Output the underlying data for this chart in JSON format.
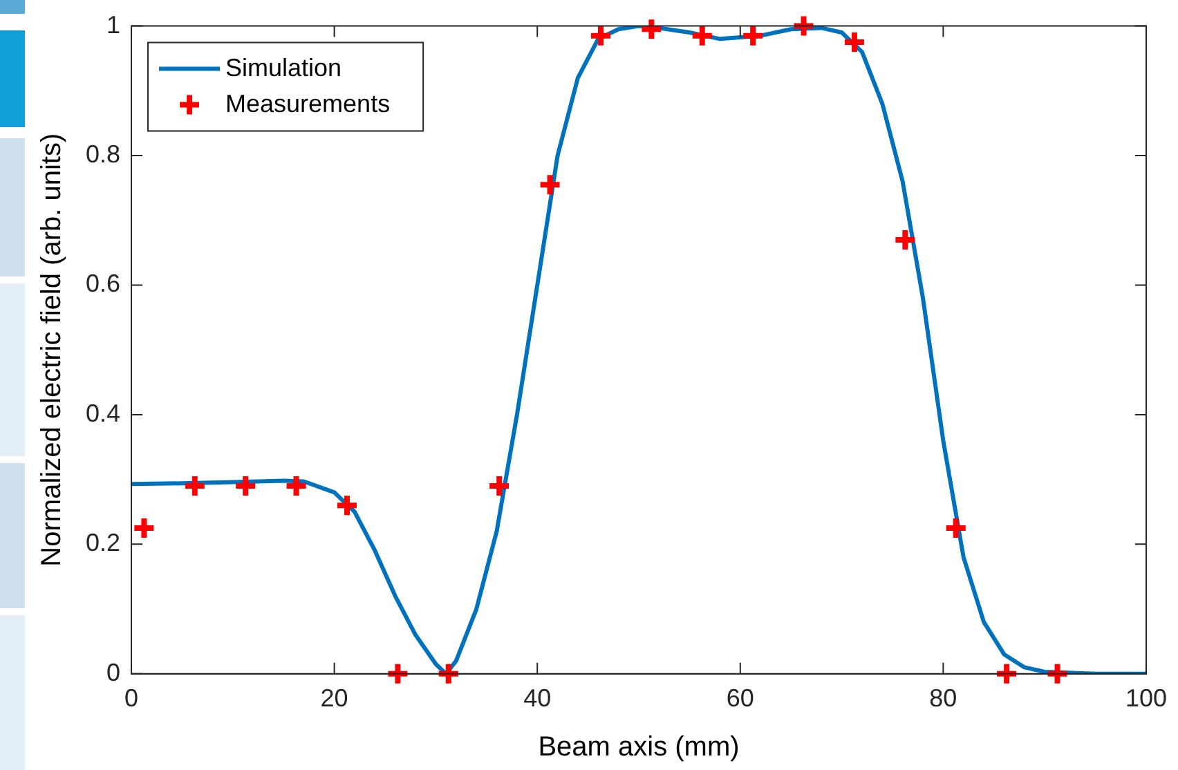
{
  "chart_data": {
    "type": "line",
    "xlabel": "Beam axis (mm)",
    "ylabel": "Normalized electric field (arb. units)",
    "xlim": [
      0,
      100
    ],
    "xticks": [
      0,
      20,
      40,
      60,
      80,
      100
    ],
    "ylim": [
      0,
      1
    ],
    "yticks": [
      0,
      0.2,
      0.4,
      0.6,
      0.8,
      1
    ],
    "grid": false,
    "legend": "top left",
    "series": [
      {
        "name": "Simulation",
        "type": "line",
        "color": "#0072bd",
        "marker": "none",
        "line_style": "solid",
        "x": [
          0,
          5,
          10,
          15,
          17,
          20,
          22,
          24,
          26,
          28,
          30,
          31,
          32,
          34,
          36,
          38,
          40,
          42,
          44,
          46,
          48,
          50,
          52,
          55,
          58,
          62,
          65,
          68,
          70,
          72,
          74,
          76,
          78,
          80,
          82,
          84,
          86,
          88,
          90,
          95,
          100
        ],
        "values": [
          0.293,
          0.294,
          0.296,
          0.298,
          0.297,
          0.28,
          0.25,
          0.19,
          0.12,
          0.06,
          0.015,
          0,
          0.02,
          0.1,
          0.22,
          0.4,
          0.6,
          0.8,
          0.92,
          0.98,
          0.995,
          1,
          0.997,
          0.99,
          0.98,
          0.985,
          0.995,
          0.997,
          0.99,
          0.96,
          0.88,
          0.76,
          0.58,
          0.36,
          0.18,
          0.08,
          0.03,
          0.01,
          0.003,
          0,
          0
        ]
      },
      {
        "name": "Measurements",
        "type": "scatter",
        "color": "#ff0000",
        "marker": "cross",
        "x": [
          1.25,
          6.25,
          11.25,
          16.25,
          21.25,
          26.25,
          31.25,
          36.25,
          41.25,
          46.25,
          51.25,
          56.25,
          61.25,
          66.25,
          71.25,
          76.25,
          81.25,
          86.25,
          91.25
        ],
        "values": [
          0.225,
          0.29,
          0.29,
          0.29,
          0.26,
          0,
          0,
          0.29,
          0.755,
          0.985,
          0.995,
          0.985,
          0.985,
          1,
          0.975,
          0.67,
          0.225,
          0,
          0
        ]
      }
    ]
  }
}
